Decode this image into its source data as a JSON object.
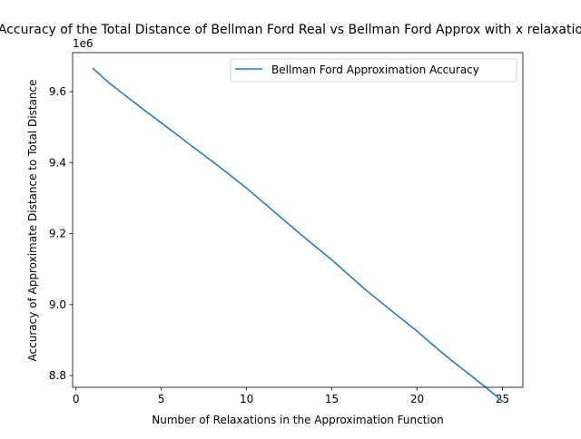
{
  "chart_data": {
    "type": "line",
    "title": "Accuracy of the Total Distance of Bellman Ford Real vs Bellman Ford Approx with x relaxations",
    "xlabel": "Number of Relaxations in the Approximation Function",
    "ylabel": "Accuracy of Approximate Distance to Total Distance",
    "y_offset_label": "1e6",
    "xlim": [
      -0.2,
      26.2
    ],
    "ylim": [
      8.767,
      9.71
    ],
    "xticks": [
      0,
      5,
      10,
      15,
      20,
      25
    ],
    "xtick_labels": [
      "0",
      "5",
      "10",
      "15",
      "20",
      "25"
    ],
    "yticks": [
      8.8,
      9.0,
      9.2,
      9.4,
      9.6
    ],
    "ytick_labels": [
      "8.8",
      "9.0",
      "9.2",
      "9.4",
      "9.6"
    ],
    "grid": false,
    "legend_position": "upper right",
    "series": [
      {
        "name": "Bellman Ford Approximation Accuracy",
        "color": "#1f77b4",
        "x": [
          1,
          2,
          3,
          4,
          5,
          6,
          7,
          8,
          9,
          10,
          11,
          12,
          13,
          14,
          15,
          16,
          17,
          18,
          19,
          20,
          21,
          22,
          23,
          24,
          25
        ],
        "y": [
          9.665,
          9.622,
          9.585,
          9.548,
          9.512,
          9.476,
          9.439,
          9.403,
          9.366,
          9.328,
          9.287,
          9.246,
          9.205,
          9.165,
          9.126,
          9.083,
          9.041,
          9.002,
          8.963,
          8.925,
          8.883,
          8.843,
          8.806,
          8.768,
          8.728
        ]
      }
    ]
  }
}
